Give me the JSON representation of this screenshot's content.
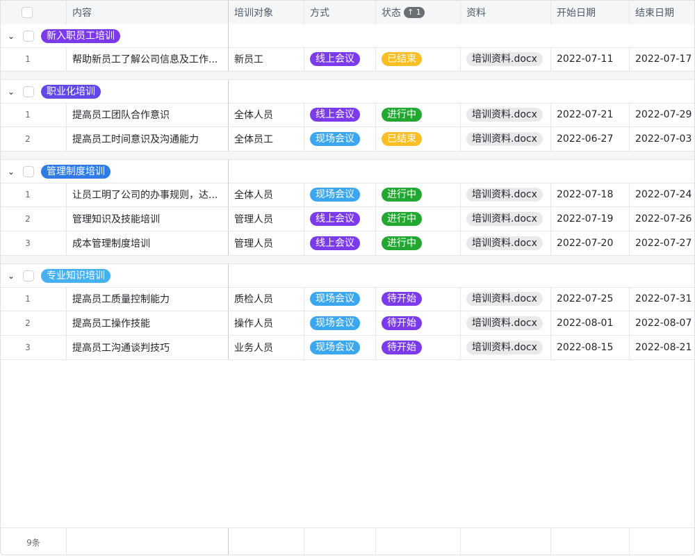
{
  "columns": [
    "内容",
    "培训对象",
    "方式",
    "状态",
    "资料",
    "开始日期",
    "结束日期"
  ],
  "sort_badge": "↑ 1",
  "colors": {
    "online": "#7c3aed",
    "onsite": "#3ba7f0",
    "ended": "#fbbf24",
    "ongoing": "#22a831",
    "pending": "#7c3aed"
  },
  "groups": [
    {
      "name": "新入职员工培训",
      "color": "#7c3aed",
      "rows": [
        {
          "idx": "1",
          "content": "帮助新员工了解公司信息及工作...",
          "target": "新员工",
          "mode": "线上会议",
          "status": "已结束",
          "file": "培训资料.docx",
          "start": "2022-07-11",
          "end": "2022-07-17"
        }
      ]
    },
    {
      "name": "职业化培训",
      "color": "#6148e8",
      "rows": [
        {
          "idx": "1",
          "content": "提高员工团队合作意识",
          "target": "全体人员",
          "mode": "线上会议",
          "status": "进行中",
          "file": "培训资料.docx",
          "start": "2022-07-21",
          "end": "2022-07-29"
        },
        {
          "idx": "2",
          "content": "提高员工时间意识及沟通能力",
          "target": "全体员工",
          "mode": "现场会议",
          "status": "已结束",
          "file": "培训资料.docx",
          "start": "2022-06-27",
          "end": "2022-07-03"
        }
      ]
    },
    {
      "name": "管理制度培训",
      "color": "#2f7ce6",
      "rows": [
        {
          "idx": "1",
          "content": "让员工明了公司的办事规则，达...",
          "target": "全体人员",
          "mode": "现场会议",
          "status": "进行中",
          "file": "培训资料.docx",
          "start": "2022-07-18",
          "end": "2022-07-24"
        },
        {
          "idx": "2",
          "content": "管理知识及技能培训",
          "target": "管理人员",
          "mode": "线上会议",
          "status": "进行中",
          "file": "培训资料.docx",
          "start": "2022-07-19",
          "end": "2022-07-26"
        },
        {
          "idx": "3",
          "content": "成本管理制度培训",
          "target": "管理人员",
          "mode": "线上会议",
          "status": "进行中",
          "file": "培训资料.docx",
          "start": "2022-07-20",
          "end": "2022-07-27"
        }
      ]
    },
    {
      "name": "专业知识培训",
      "color": "#45b0f2",
      "rows": [
        {
          "idx": "1",
          "content": "提高员工质量控制能力",
          "target": "质检人员",
          "mode": "现场会议",
          "status": "待开始",
          "file": "培训资料.docx",
          "start": "2022-07-25",
          "end": "2022-07-31"
        },
        {
          "idx": "2",
          "content": "提高员工操作技能",
          "target": "操作人员",
          "mode": "现场会议",
          "status": "待开始",
          "file": "培训资料.docx",
          "start": "2022-08-01",
          "end": "2022-08-07"
        },
        {
          "idx": "3",
          "content": "提高员工沟通谈判技巧",
          "target": "业务人员",
          "mode": "现场会议",
          "status": "待开始",
          "file": "培训资料.docx",
          "start": "2022-08-15",
          "end": "2022-08-21"
        }
      ]
    }
  ],
  "footer": {
    "count": "9条"
  }
}
